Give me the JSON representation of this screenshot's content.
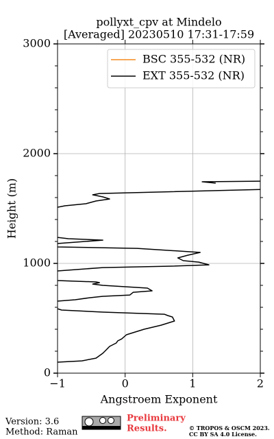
{
  "chart_data": {
    "type": "line",
    "orientation": "vertical-profile",
    "title": "pollyxt_cpv at Mindelo",
    "subtitle": "[Averaged] 20230510 17:31-17:59",
    "x_label": "Angstroem Exponent",
    "y_label": "Height (m)",
    "xlim": [
      -1,
      2
    ],
    "xticks": [
      {
        "value": -1,
        "label": "−1"
      },
      0,
      1,
      2
    ],
    "ylim": [
      0,
      3000
    ],
    "yticks": [
      0,
      1000,
      2000,
      3000
    ],
    "y_minor_ticks": [
      200,
      400,
      600,
      800,
      1200,
      1400,
      1600,
      1800,
      2200,
      2400,
      2600,
      2800
    ],
    "grid": true,
    "legend": "upper right",
    "y": [
      100,
      112,
      137,
      181,
      212,
      244,
      275,
      294,
      312,
      350,
      400,
      437,
      475,
      512,
      525,
      537,
      556,
      575,
      587,
      619,
      656,
      669,
      687,
      700,
      712,
      737,
      750,
      775,
      800,
      812,
      825,
      831,
      844,
      850,
      931,
      962,
      975,
      987,
      1012,
      1025,
      1050,
      1075,
      1100,
      1137,
      1150,
      1162,
      1181,
      1212,
      1225,
      1237,
      1250,
      1512,
      1525,
      1544,
      1569,
      1587,
      1606,
      1625,
      1637,
      1675,
      1700,
      1750,
      1744,
      1731
    ],
    "series": [
      {
        "name": "BSC 355-532 (NR)",
        "color": "#f58a1f",
        "values": [
          null,
          null,
          null,
          null,
          null,
          null,
          null,
          null,
          null,
          null,
          null,
          null,
          null,
          null,
          null,
          null,
          null,
          null,
          null,
          null,
          null,
          null,
          null,
          null,
          null,
          null,
          null,
          null,
          null,
          null,
          null,
          null,
          null,
          null,
          null,
          null,
          null,
          null,
          null,
          null,
          null,
          null,
          null,
          null,
          null,
          null,
          null,
          null,
          null,
          null,
          null,
          null,
          null,
          null,
          null,
          null,
          null,
          null,
          null,
          null,
          null,
          null,
          null,
          null
        ]
      },
      {
        "name": "EXT 355-532 (NR)",
        "color": "#000000",
        "values": [
          -1.0,
          -0.64,
          -0.43,
          -0.33,
          -0.28,
          -0.23,
          -0.13,
          -0.11,
          -0.05,
          0.02,
          0.28,
          0.53,
          0.73,
          0.7,
          0.63,
          0.58,
          -0.33,
          -0.94,
          -1.0,
          -1.1,
          -1.0,
          -0.74,
          -0.53,
          -0.33,
          0.07,
          0.12,
          0.4,
          0.33,
          -0.33,
          -0.48,
          -0.38,
          -0.43,
          -1.0,
          -1.1,
          -1.0,
          -0.33,
          0.69,
          1.24,
          1.09,
          0.86,
          0.78,
          0.93,
          1.11,
          0.18,
          -1.0,
          -1.1,
          -1.0,
          -0.33,
          -0.84,
          -1.0,
          -1.1,
          -1.0,
          -0.89,
          -0.58,
          -0.43,
          -0.23,
          -0.33,
          -0.48,
          -0.38,
          2.1,
          null,
          2.1,
          1.14,
          1.34
        ]
      }
    ]
  },
  "footer": {
    "version": "Version: 3.6",
    "method": "Method: Raman",
    "preliminary": [
      "Preliminary",
      "Results."
    ],
    "copyright": [
      "© TROPOS & OSCM 2023.",
      "CC BY SA 4.0 License."
    ]
  }
}
